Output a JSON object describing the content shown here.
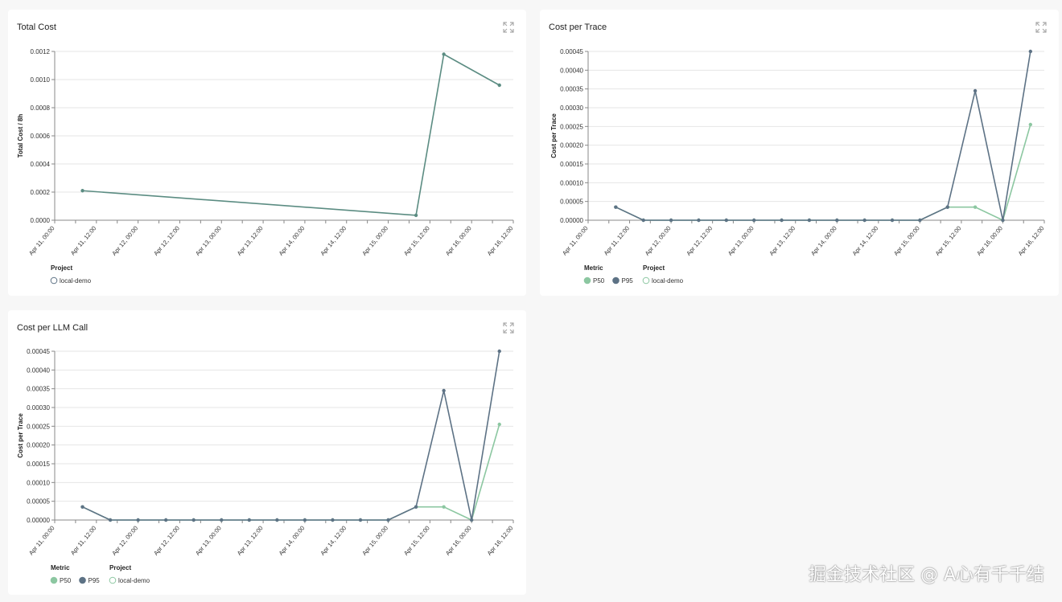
{
  "colors": {
    "p50": "#8cc7a1",
    "p95": "#5d7285",
    "total": "#5b8c82",
    "grid": "#e6e6e6",
    "axis": "#888888"
  },
  "watermark": "掘金技术社区 @ A心有千千结",
  "x_ticks": [
    "Apr 11, 00:00",
    "Apr 11, 12:00",
    "Apr 12, 00:00",
    "Apr 12, 12:00",
    "Apr 13, 00:00",
    "Apr 13, 12:00",
    "Apr 14, 00:00",
    "Apr 14, 12:00",
    "Apr 15, 00:00",
    "Apr 15, 12:00",
    "Apr 16, 00:00",
    "Apr 16, 12:00"
  ],
  "chart_data": [
    {
      "type": "line",
      "title": "Total Cost",
      "ylabel": "Total Cost / 8h",
      "xlabel": "",
      "ylim": [
        0,
        0.0012
      ],
      "y_ticks": [
        "0.0000",
        "0.0002",
        "0.0004",
        "0.0006",
        "0.0008",
        "0.0010",
        "0.0012"
      ],
      "grid": true,
      "legend_position": "bottom-left",
      "legend": [
        {
          "title": "Project",
          "items": [
            {
              "label": "local-demo",
              "style": "hollow",
              "color": "#5d7285"
            }
          ]
        }
      ],
      "series": [
        {
          "color_key": "total",
          "x": [
            "Apr 11, 08:00",
            "Apr 15, 08:00",
            "Apr 15, 16:00",
            "Apr 16, 08:00"
          ],
          "y": [
            0.00021,
            3.5e-05,
            0.00118,
            0.00096
          ]
        }
      ]
    },
    {
      "type": "line",
      "title": "Cost per Trace",
      "ylabel": "Cost per Trace",
      "xlabel": "",
      "ylim": [
        0,
        0.00045
      ],
      "y_ticks": [
        "0.00000",
        "0.00005",
        "0.00010",
        "0.00015",
        "0.00020",
        "0.00025",
        "0.00030",
        "0.00035",
        "0.00040",
        "0.00045"
      ],
      "grid": true,
      "legend_position": "bottom-left",
      "legend": [
        {
          "title": "Metric",
          "items": [
            {
              "label": "P50",
              "style": "filled",
              "color": "#8cc7a1"
            },
            {
              "label": "P95",
              "style": "filled",
              "color": "#5d7285"
            }
          ]
        },
        {
          "title": "Project",
          "items": [
            {
              "label": "local-demo",
              "style": "hollow",
              "color": "#8cc7a1"
            }
          ]
        }
      ],
      "series": [
        {
          "name": "P50",
          "color_key": "p50",
          "x": [
            "Apr 11, 08:00",
            "Apr 11, 16:00",
            "Apr 12, 00:00",
            "Apr 12, 08:00",
            "Apr 12, 16:00",
            "Apr 13, 00:00",
            "Apr 13, 08:00",
            "Apr 13, 16:00",
            "Apr 14, 00:00",
            "Apr 14, 08:00",
            "Apr 14, 16:00",
            "Apr 15, 00:00",
            "Apr 15, 08:00",
            "Apr 15, 16:00",
            "Apr 16, 00:00",
            "Apr 16, 08:00"
          ],
          "y": [
            3.5e-05,
            0,
            0,
            0,
            0,
            0,
            0,
            0,
            0,
            0,
            0,
            0,
            3.5e-05,
            3.5e-05,
            0,
            0.000255
          ]
        },
        {
          "name": "P95",
          "color_key": "p95",
          "x": [
            "Apr 11, 08:00",
            "Apr 11, 16:00",
            "Apr 12, 00:00",
            "Apr 12, 08:00",
            "Apr 12, 16:00",
            "Apr 13, 00:00",
            "Apr 13, 08:00",
            "Apr 13, 16:00",
            "Apr 14, 00:00",
            "Apr 14, 08:00",
            "Apr 14, 16:00",
            "Apr 15, 00:00",
            "Apr 15, 08:00",
            "Apr 15, 16:00",
            "Apr 16, 00:00",
            "Apr 16, 08:00"
          ],
          "y": [
            3.5e-05,
            0,
            0,
            0,
            0,
            0,
            0,
            0,
            0,
            0,
            0,
            0,
            3.5e-05,
            0.000345,
            0,
            0.00045
          ]
        }
      ]
    },
    {
      "type": "line",
      "title": "Cost per LLM Call",
      "ylabel": "Cost per Trace",
      "xlabel": "",
      "ylim": [
        0,
        0.00045
      ],
      "y_ticks": [
        "0.00000",
        "0.00005",
        "0.00010",
        "0.00015",
        "0.00020",
        "0.00025",
        "0.00030",
        "0.00035",
        "0.00040",
        "0.00045"
      ],
      "grid": true,
      "legend_position": "bottom-left",
      "legend": [
        {
          "title": "Metric",
          "items": [
            {
              "label": "P50",
              "style": "filled",
              "color": "#8cc7a1"
            },
            {
              "label": "P95",
              "style": "filled",
              "color": "#5d7285"
            }
          ]
        },
        {
          "title": "Project",
          "items": [
            {
              "label": "local-demo",
              "style": "hollow",
              "color": "#8cc7a1"
            }
          ]
        }
      ],
      "series": [
        {
          "name": "P50",
          "color_key": "p50",
          "x": [
            "Apr 11, 08:00",
            "Apr 11, 16:00",
            "Apr 12, 00:00",
            "Apr 12, 08:00",
            "Apr 12, 16:00",
            "Apr 13, 00:00",
            "Apr 13, 08:00",
            "Apr 13, 16:00",
            "Apr 14, 00:00",
            "Apr 14, 08:00",
            "Apr 14, 16:00",
            "Apr 15, 00:00",
            "Apr 15, 08:00",
            "Apr 15, 16:00",
            "Apr 16, 00:00",
            "Apr 16, 08:00"
          ],
          "y": [
            3.5e-05,
            0,
            0,
            0,
            0,
            0,
            0,
            0,
            0,
            0,
            0,
            0,
            3.5e-05,
            3.5e-05,
            0,
            0.000255
          ]
        },
        {
          "name": "P95",
          "color_key": "p95",
          "x": [
            "Apr 11, 08:00",
            "Apr 11, 16:00",
            "Apr 12, 00:00",
            "Apr 12, 08:00",
            "Apr 12, 16:00",
            "Apr 13, 00:00",
            "Apr 13, 08:00",
            "Apr 13, 16:00",
            "Apr 14, 00:00",
            "Apr 14, 08:00",
            "Apr 14, 16:00",
            "Apr 15, 00:00",
            "Apr 15, 08:00",
            "Apr 15, 16:00",
            "Apr 16, 00:00",
            "Apr 16, 08:00"
          ],
          "y": [
            3.5e-05,
            0,
            0,
            0,
            0,
            0,
            0,
            0,
            0,
            0,
            0,
            0,
            3.5e-05,
            0.000345,
            0,
            0.00045
          ]
        }
      ]
    }
  ]
}
